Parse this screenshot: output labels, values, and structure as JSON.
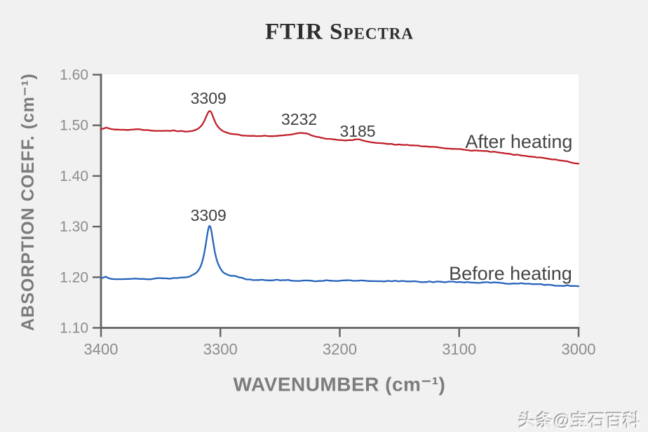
{
  "watermark": "头条@宝石百科",
  "chart_data": {
    "type": "line",
    "title": "FTIR Spectra",
    "xlabel": "WAVENUMBER (cm⁻¹)",
    "ylabel": "ABSORPTION COEFF. (cm⁻¹)",
    "xlim": [
      3400,
      3000
    ],
    "ylim": [
      1.1,
      1.6
    ],
    "x_reversed": true,
    "grid": false,
    "legend": "inline-labels",
    "x_ticks": [
      "3400",
      "3300",
      "3200",
      "3100",
      "3000"
    ],
    "y_ticks": [
      "1.60",
      "1.50",
      "1.40",
      "1.30",
      "1.20",
      "1.10"
    ],
    "colors": {
      "axis": "#636363",
      "tick_labels": "#8c8c8c",
      "axis_titles": "#7c7c7c",
      "annotations": "#3e3e3e",
      "series_labels": "#454545",
      "plot_background": "#ffffff",
      "page_background": "#f1f1f1",
      "title": "#2d2d2d"
    },
    "series": [
      {
        "name": "After heating",
        "color": "#c0202a",
        "label_text": "After heating",
        "label_at": {
          "x": 3050,
          "y": 1.468
        },
        "baseline": [
          [
            3400,
            1.492
          ],
          [
            3370,
            1.4895
          ],
          [
            3340,
            1.488
          ],
          [
            3309,
            1.481
          ],
          [
            3280,
            1.4785
          ],
          [
            3250,
            1.476
          ],
          [
            3232,
            1.474
          ],
          [
            3210,
            1.4705
          ],
          [
            3185,
            1.466
          ],
          [
            3160,
            1.4625
          ],
          [
            3130,
            1.4585
          ],
          [
            3100,
            1.4525
          ],
          [
            3070,
            1.447
          ],
          [
            3040,
            1.438
          ],
          [
            3020,
            1.432
          ],
          [
            3000,
            1.4245
          ]
        ],
        "peaks": [
          {
            "center": 3309,
            "amplitude": 0.047,
            "hwhm": 5
          },
          {
            "center": 3232,
            "amplitude": 0.011,
            "hwhm": 11
          },
          {
            "center": 3185,
            "amplitude": 0.006,
            "hwhm": 6
          },
          {
            "center": 3396,
            "amplitude": 0.0035,
            "hwhm": 2.5
          },
          {
            "center": 3368,
            "amplitude": 0.0025,
            "hwhm": 4
          }
        ],
        "noise_amplitude": 0.0012,
        "seed": 7
      },
      {
        "name": "Before heating",
        "color": "#2563bb",
        "label_text": "Before heating",
        "label_at": {
          "x": 3057,
          "y": 1.2075
        },
        "baseline": [
          [
            3400,
            1.1965
          ],
          [
            3370,
            1.1955
          ],
          [
            3340,
            1.195
          ],
          [
            3309,
            1.194
          ],
          [
            3280,
            1.1935
          ],
          [
            3250,
            1.1935
          ],
          [
            3232,
            1.193
          ],
          [
            3200,
            1.1925
          ],
          [
            3170,
            1.192
          ],
          [
            3140,
            1.1915
          ],
          [
            3100,
            1.1905
          ],
          [
            3060,
            1.1885
          ],
          [
            3030,
            1.1855
          ],
          [
            3000,
            1.1825
          ]
        ],
        "peaks": [
          {
            "center": 3309,
            "amplitude": 0.108,
            "hwhm": 4.5
          },
          {
            "center": 3288,
            "amplitude": 0.004,
            "hwhm": 6
          },
          {
            "center": 3396,
            "amplitude": 0.0045,
            "hwhm": 2.5
          },
          {
            "center": 3352,
            "amplitude": 0.002,
            "hwhm": 3
          }
        ],
        "noise_amplitude": 0.0016,
        "seed": 13
      }
    ],
    "annotations": [
      {
        "text": "3309",
        "x": 3310,
        "y": 1.5535,
        "series": "After heating"
      },
      {
        "text": "3232",
        "x": 3234,
        "y": 1.512,
        "series": "After heating"
      },
      {
        "text": "3185",
        "x": 3185,
        "y": 1.4885,
        "series": "After heating"
      },
      {
        "text": "3309",
        "x": 3310,
        "y": 1.3225,
        "series": "Before heating"
      }
    ]
  }
}
